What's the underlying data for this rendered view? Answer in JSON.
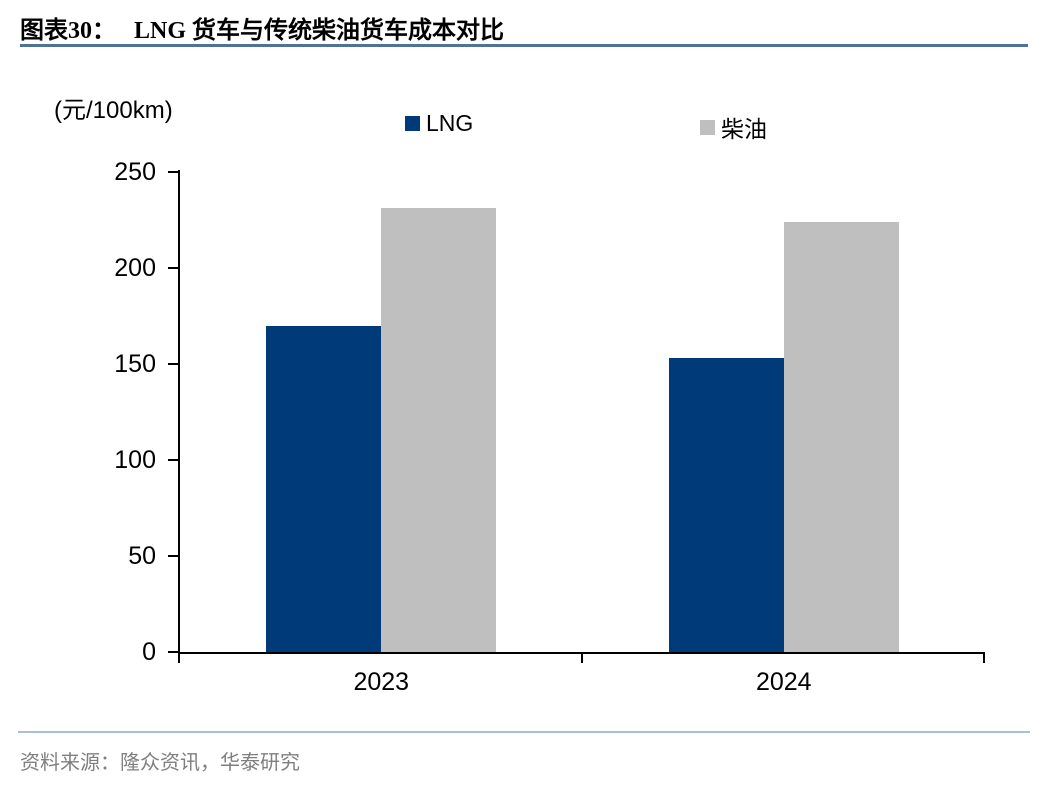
{
  "header": {
    "figure_label": "图表30：",
    "title": "LNG 货车与传统柴油货车成本对比"
  },
  "chart_data": {
    "type": "bar",
    "title": "LNG 货车与传统柴油货车成本对比",
    "unit_label": "(元/100km)",
    "categories": [
      "2023",
      "2024"
    ],
    "series": [
      {
        "name": "LNG",
        "color": "#003a78",
        "values": [
          170,
          153
        ]
      },
      {
        "name": "柴油",
        "color": "#bfbfbf",
        "values": [
          231,
          224
        ]
      }
    ],
    "xlabel": "",
    "ylabel": "(元/100km)",
    "ylim": [
      0,
      250
    ],
    "yticks": [
      0,
      50,
      100,
      150,
      200,
      250
    ],
    "grid": false,
    "legend_position": "top"
  },
  "footer": {
    "source": "资料来源：隆众资讯，华泰研究"
  },
  "colors": {
    "bar_lng": "#003a78",
    "bar_diesel": "#bfbfbf",
    "title_rule": "#4e7396",
    "footer_rule": "#aac2d6",
    "source_text": "#7f7f7f",
    "axis": "#000000"
  }
}
